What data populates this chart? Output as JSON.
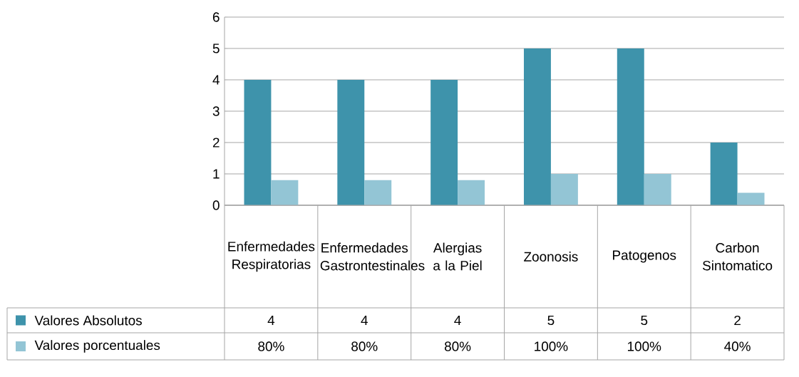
{
  "chart_data": {
    "type": "bar",
    "categories": [
      "Enfermedades Respiratorias",
      "Enfermedades Gastrontestinales",
      "Alergias a la Piel",
      "Zoonosis",
      "Patogenos",
      "Carbon Sintomatico"
    ],
    "series": [
      {
        "name": "Valores Absolutos",
        "color": "#3e93ab",
        "values": [
          4,
          4,
          4,
          5,
          5,
          2
        ]
      },
      {
        "name": "Valores porcentuales",
        "color": "#93c5d5",
        "values": [
          0.8,
          0.8,
          0.8,
          1,
          1,
          0.4
        ],
        "value_labels": [
          "80%",
          "80%",
          "80%",
          "100%",
          "100%",
          "40%"
        ]
      }
    ],
    "ylim": [
      0,
      6
    ],
    "yticks": [
      0,
      1,
      2,
      3,
      4,
      5,
      6
    ],
    "grid": "y",
    "legend": "bottom",
    "data_labels": true
  }
}
